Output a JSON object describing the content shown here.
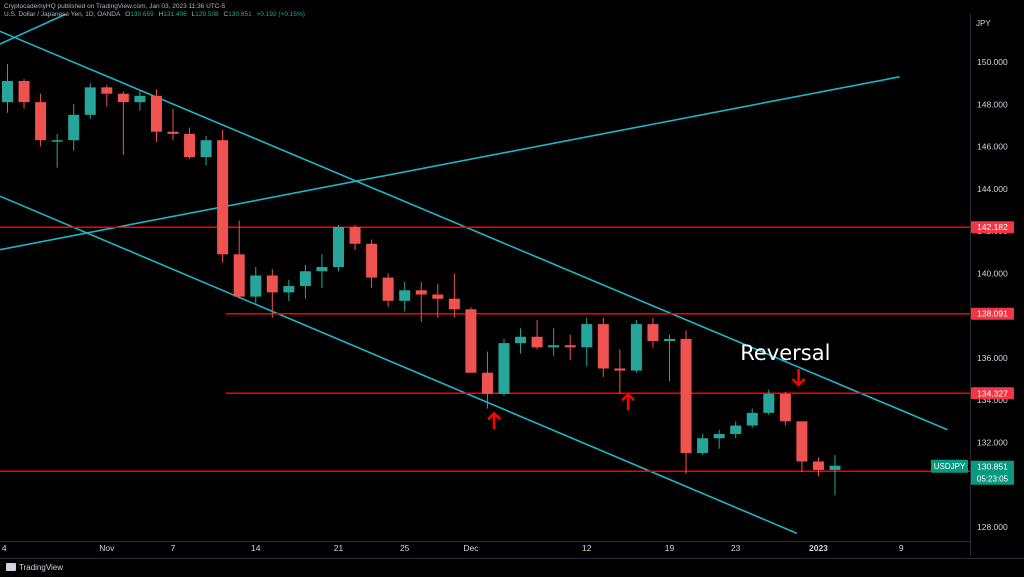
{
  "header": {
    "published": "CryptocademyHQ published on TradingView.com, Jan 03, 2023 11:36 UTC-5",
    "symbol_line": "U.S. Dollar / Japanese Yen, 1D, OANDA",
    "o_label": "O",
    "o": "130.659",
    "h_label": "H",
    "h": "131.406",
    "l_label": "L",
    "l": "129.508",
    "c_label": "C",
    "c": "130.851",
    "change": "+0.192 (+0.15%)"
  },
  "footer": {
    "brand": "TradingView"
  },
  "colors": {
    "background": "#000000",
    "bull": "#26a69a",
    "bear": "#ef5350",
    "level_line": "#ff0000",
    "channel_line": "#1fb5c9",
    "text": "#d1d4dc"
  },
  "chart_data": {
    "type": "candlestick",
    "title": "U.S. Dollar / Japanese Yen, 1D, OANDA",
    "currency_label": "JPY",
    "ylim": [
      127.5,
      152.2
    ],
    "y_ticks": [
      "150.000",
      "148.000",
      "146.000",
      "144.000",
      "142.000",
      "140.000",
      "138.000",
      "136.000",
      "134.000",
      "132.000",
      "128.000"
    ],
    "x_ticks": [
      "4",
      "Nov",
      "7",
      "14",
      "21",
      "25",
      "Dec",
      "12",
      "19",
      "23",
      "2023",
      "9"
    ],
    "candles": [
      {
        "o": 148.1,
        "h": 149.9,
        "l": 147.6,
        "c": 149.1
      },
      {
        "o": 149.1,
        "h": 149.2,
        "l": 147.8,
        "c": 148.1
      },
      {
        "o": 148.1,
        "h": 148.5,
        "l": 146.0,
        "c": 146.3
      },
      {
        "o": 146.3,
        "h": 146.6,
        "l": 145.0,
        "c": 146.3
      },
      {
        "o": 146.3,
        "h": 148.0,
        "l": 145.8,
        "c": 147.5
      },
      {
        "o": 147.5,
        "h": 149.0,
        "l": 147.3,
        "c": 148.8
      },
      {
        "o": 148.8,
        "h": 148.9,
        "l": 147.9,
        "c": 148.5
      },
      {
        "o": 148.5,
        "h": 148.6,
        "l": 145.6,
        "c": 148.1
      },
      {
        "o": 148.1,
        "h": 148.7,
        "l": 147.7,
        "c": 148.4
      },
      {
        "o": 148.4,
        "h": 148.7,
        "l": 146.2,
        "c": 146.7
      },
      {
        "o": 146.7,
        "h": 147.8,
        "l": 146.3,
        "c": 146.6
      },
      {
        "o": 146.6,
        "h": 146.9,
        "l": 145.4,
        "c": 145.5
      },
      {
        "o": 145.5,
        "h": 146.5,
        "l": 145.1,
        "c": 146.3
      },
      {
        "o": 146.3,
        "h": 146.8,
        "l": 140.5,
        "c": 140.9
      },
      {
        "o": 140.9,
        "h": 142.5,
        "l": 138.8,
        "c": 138.9
      },
      {
        "o": 138.9,
        "h": 140.3,
        "l": 138.6,
        "c": 139.9
      },
      {
        "o": 139.9,
        "h": 140.2,
        "l": 137.9,
        "c": 139.1
      },
      {
        "o": 139.1,
        "h": 139.7,
        "l": 138.7,
        "c": 139.4
      },
      {
        "o": 139.4,
        "h": 140.4,
        "l": 138.8,
        "c": 140.1
      },
      {
        "o": 140.1,
        "h": 140.9,
        "l": 139.3,
        "c": 140.3
      },
      {
        "o": 140.3,
        "h": 142.3,
        "l": 140.1,
        "c": 142.2
      },
      {
        "o": 142.2,
        "h": 142.3,
        "l": 141.1,
        "c": 141.4
      },
      {
        "o": 141.4,
        "h": 141.6,
        "l": 139.3,
        "c": 139.8
      },
      {
        "o": 139.8,
        "h": 140.0,
        "l": 138.4,
        "c": 138.7
      },
      {
        "o": 138.7,
        "h": 139.6,
        "l": 138.2,
        "c": 139.2
      },
      {
        "o": 139.2,
        "h": 139.6,
        "l": 137.7,
        "c": 139.0
      },
      {
        "o": 139.0,
        "h": 139.5,
        "l": 137.9,
        "c": 138.8
      },
      {
        "o": 138.8,
        "h": 140.0,
        "l": 137.9,
        "c": 138.3
      },
      {
        "o": 138.3,
        "h": 138.4,
        "l": 135.3,
        "c": 135.3
      },
      {
        "o": 135.3,
        "h": 136.3,
        "l": 133.6,
        "c": 134.3
      },
      {
        "o": 134.3,
        "h": 136.9,
        "l": 134.2,
        "c": 136.7
      },
      {
        "o": 136.7,
        "h": 137.4,
        "l": 136.2,
        "c": 137.0
      },
      {
        "o": 137.0,
        "h": 137.8,
        "l": 136.4,
        "c": 136.5
      },
      {
        "o": 136.5,
        "h": 137.4,
        "l": 136.1,
        "c": 136.6
      },
      {
        "o": 136.6,
        "h": 137.1,
        "l": 135.9,
        "c": 136.5
      },
      {
        "o": 136.5,
        "h": 137.9,
        "l": 135.6,
        "c": 137.6
      },
      {
        "o": 137.6,
        "h": 137.9,
        "l": 135.1,
        "c": 135.5
      },
      {
        "o": 135.5,
        "h": 136.4,
        "l": 134.3,
        "c": 135.4
      },
      {
        "o": 135.4,
        "h": 137.8,
        "l": 135.3,
        "c": 137.6
      },
      {
        "o": 137.6,
        "h": 137.9,
        "l": 136.5,
        "c": 136.8
      },
      {
        "o": 136.8,
        "h": 137.1,
        "l": 134.9,
        "c": 136.9
      },
      {
        "o": 136.9,
        "h": 137.3,
        "l": 130.5,
        "c": 131.5
      },
      {
        "o": 131.5,
        "h": 132.4,
        "l": 131.4,
        "c": 132.2
      },
      {
        "o": 132.2,
        "h": 132.6,
        "l": 131.7,
        "c": 132.4
      },
      {
        "o": 132.4,
        "h": 133.0,
        "l": 132.2,
        "c": 132.8
      },
      {
        "o": 132.8,
        "h": 133.6,
        "l": 132.7,
        "c": 133.4
      },
      {
        "o": 133.4,
        "h": 134.5,
        "l": 133.3,
        "c": 134.3
      },
      {
        "o": 134.3,
        "h": 134.4,
        "l": 132.8,
        "c": 133.0
      },
      {
        "o": 133.0,
        "h": 133.0,
        "l": 130.6,
        "c": 131.1
      },
      {
        "o": 131.1,
        "h": 131.3,
        "l": 130.4,
        "c": 130.7
      },
      {
        "o": 130.7,
        "h": 131.4,
        "l": 129.5,
        "c": 130.9
      }
    ],
    "horizontal_levels": [
      {
        "value": 142.182,
        "label": "142.182",
        "extends_full": true
      },
      {
        "value": 138.091,
        "label": "138.091",
        "extends_full": false
      },
      {
        "value": 134.327,
        "label": "134.327",
        "extends_full": false
      },
      {
        "value": 130.638,
        "label": "130.638",
        "extends_full": true
      }
    ],
    "last_price": {
      "symbol": "USDJPY",
      "value": 130.851,
      "label": "130.851",
      "countdown": "05:23:05"
    },
    "trend_lines": [
      {
        "from": {
          "bar": -0.6,
          "y": 151.5
        },
        "to": {
          "bar": 56.8,
          "y": 132.6
        }
      },
      {
        "from": {
          "bar": -0.6,
          "y": 143.7
        },
        "to": {
          "bar": 47.7,
          "y": 127.7
        }
      },
      {
        "from": {
          "bar": -0.6,
          "y": 141.1
        },
        "to": {
          "bar": 53.9,
          "y": 149.3
        }
      },
      {
        "from": {
          "bar": -0.6,
          "y": 150.8
        },
        "to": {
          "bar": 8.4,
          "y": 154.0
        }
      }
    ],
    "annotations": {
      "text": "Reversal",
      "text_anchor": {
        "bar": 47.0,
        "y": 136.0
      },
      "arrows_up": [
        {
          "bar": 29.4,
          "y": 133.0
        },
        {
          "bar": 37.5,
          "y": 133.9
        }
      ],
      "arrows_down": [
        {
          "bar": 47.8,
          "y": 135.1
        }
      ]
    }
  }
}
